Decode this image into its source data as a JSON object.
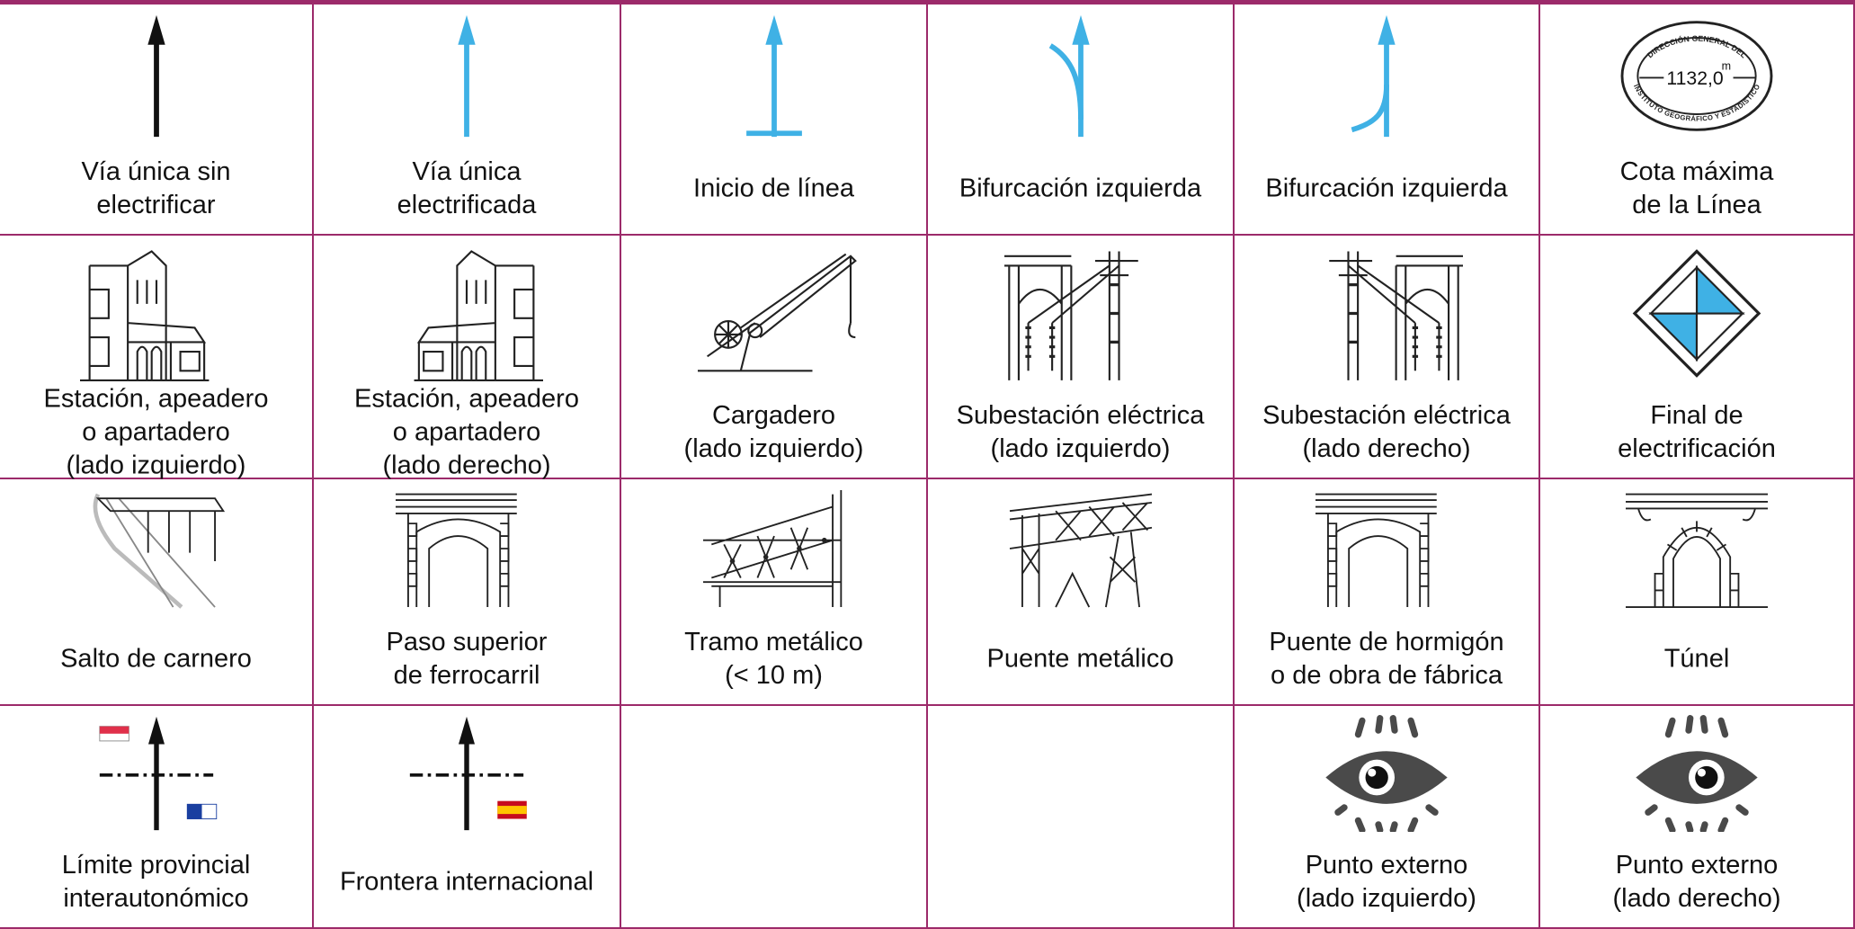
{
  "rows": [
    [
      {
        "label": [
          "Vía única sin",
          "electrificar"
        ]
      },
      {
        "label": [
          "Vía única",
          "electrificada"
        ]
      },
      {
        "label": [
          "Inicio de línea"
        ]
      },
      {
        "label": [
          "Bifurcación izquierda"
        ]
      },
      {
        "label": [
          "Bifurcación izquierda"
        ]
      },
      {
        "label": [
          "Cota máxima",
          "de la Línea"
        ],
        "emblem": {
          "top": "DIRECCIÓN GENERAL DEL",
          "value": "1132,0",
          "unit": "m",
          "bottom": "INSTITUTO GEOGRÁFICO Y ESTADÍSTICO"
        }
      }
    ],
    [
      {
        "label": [
          "Estación, apeadero",
          "o apartadero",
          "(lado izquierdo)"
        ]
      },
      {
        "label": [
          "Estación, apeadero",
          "o apartadero",
          "(lado derecho)"
        ]
      },
      {
        "label": [
          "Cargadero",
          "(lado izquierdo)"
        ]
      },
      {
        "label": [
          "Subestación eléctrica",
          "(lado izquierdo)"
        ]
      },
      {
        "label": [
          "Subestación eléctrica",
          "(lado derecho)"
        ]
      },
      {
        "label": [
          "Final de",
          "electrificación"
        ]
      }
    ],
    [
      {
        "label": [
          "Salto de carnero"
        ]
      },
      {
        "label": [
          "Paso superior",
          "de ferrocarril"
        ]
      },
      {
        "label": [
          "Tramo metálico",
          "(< 10 m)"
        ]
      },
      {
        "label": [
          "Puente metálico"
        ]
      },
      {
        "label": [
          "Puente de hormigón",
          "o de obra de fábrica"
        ]
      },
      {
        "label": [
          "Túnel"
        ]
      }
    ],
    [
      {
        "label": [
          "Límite provincial",
          "interautonómico"
        ]
      },
      {
        "label": [
          "Frontera internacional"
        ]
      },
      null,
      null,
      {
        "label": [
          "Punto externo",
          "(lado izquierdo)"
        ]
      },
      {
        "label": [
          "Punto externo",
          "(lado derecho)"
        ]
      }
    ]
  ]
}
